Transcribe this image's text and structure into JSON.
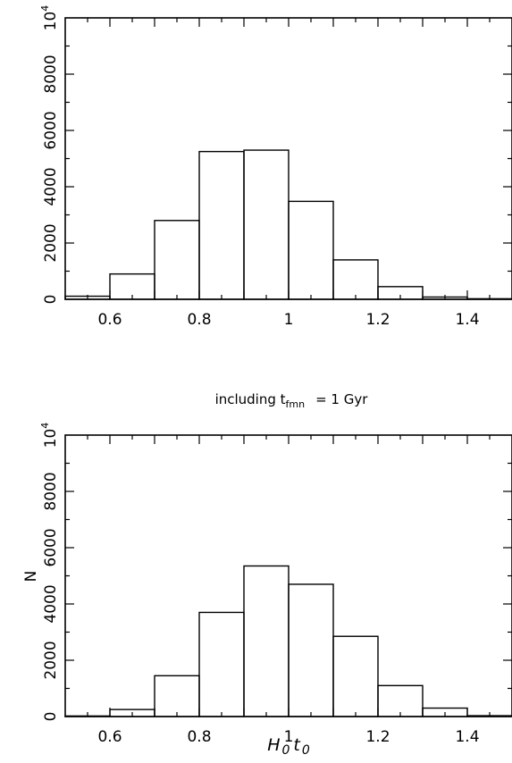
{
  "chart_data": [
    {
      "type": "bar",
      "title": "",
      "xlabel": "",
      "ylabel": "",
      "xlim": [
        0.5,
        1.5
      ],
      "ylim": [
        0,
        10000
      ],
      "bin_edges": [
        0.5,
        0.6,
        0.7,
        0.8,
        0.9,
        1.0,
        1.1,
        1.2,
        1.3,
        1.4,
        1.5
      ],
      "values": [
        110,
        900,
        2800,
        5250,
        5300,
        3480,
        1400,
        450,
        80,
        20
      ],
      "x_ticks": [
        0.6,
        0.8,
        1.0,
        1.2,
        1.4
      ],
      "x_tick_labels": [
        "0.6",
        "0.8",
        "1",
        "1.2",
        "1.4"
      ],
      "y_ticks": [
        0,
        2000,
        4000,
        6000,
        8000
      ],
      "y_tick_labels": [
        "0",
        "2000",
        "4000",
        "6000",
        "8000"
      ],
      "y_top_label": {
        "base": "10",
        "exp": "4"
      },
      "grid": false
    },
    {
      "type": "bar",
      "title": {
        "main": "including t",
        "sub": "fmn",
        "rest": "= 1 Gyr"
      },
      "xlabel": {
        "H": "H",
        "Hsub": "0",
        "t": "t",
        "tsub": "0"
      },
      "ylabel": "N",
      "xlim": [
        0.5,
        1.5
      ],
      "ylim": [
        0,
        10000
      ],
      "bin_edges": [
        0.5,
        0.6,
        0.7,
        0.8,
        0.9,
        1.0,
        1.1,
        1.2,
        1.3,
        1.4,
        1.5
      ],
      "values": [
        20,
        250,
        1450,
        3700,
        5350,
        4700,
        2850,
        1100,
        300,
        30
      ],
      "x_ticks": [
        0.6,
        0.8,
        1.0,
        1.2,
        1.4
      ],
      "x_tick_labels": [
        "0.6",
        "0.8",
        "1",
        "1.2",
        "1.4"
      ],
      "y_ticks": [
        0,
        2000,
        4000,
        6000,
        8000
      ],
      "y_tick_labels": [
        "0",
        "2000",
        "4000",
        "6000",
        "8000"
      ],
      "y_top_label": {
        "base": "10",
        "exp": "4"
      },
      "grid": false
    }
  ]
}
